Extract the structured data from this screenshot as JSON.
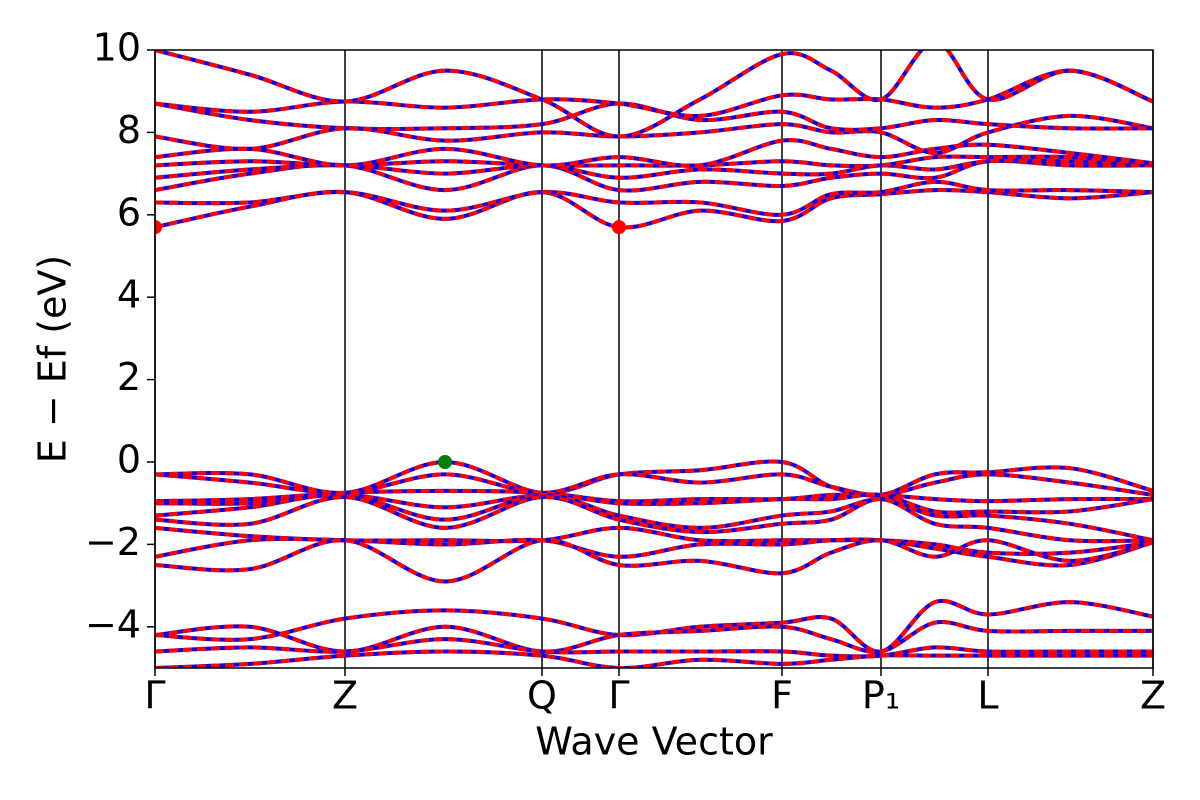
{
  "chart_data": {
    "type": "band_structure",
    "x_label": "Wave Vector",
    "y_label": "E − Ef (eV)",
    "xlim": [
      0,
      9.98
    ],
    "ylim": [
      -5,
      10
    ],
    "xticks": [
      {
        "value": 0,
        "label": "Γ"
      },
      {
        "value": 1.9,
        "label": "Z"
      },
      {
        "value": 3.87,
        "label": "Q"
      },
      {
        "value": 4.64,
        "label": "Γ"
      },
      {
        "value": 6.27,
        "label": "F"
      },
      {
        "value": 7.26,
        "label": "P₁"
      },
      {
        "value": 8.33,
        "label": "L"
      },
      {
        "value": 9.98,
        "label": "Z"
      }
    ],
    "yticks": [
      {
        "value": -4,
        "label": "−4"
      },
      {
        "value": -2,
        "label": "−2"
      },
      0,
      2,
      4,
      6,
      8,
      10
    ],
    "vertical_lines": true,
    "color": "#ff0000",
    "under_color": "#0000ff",
    "x": [
      0,
      0.95,
      1.9,
      2.9,
      3.87,
      4.64,
      5.45,
      6.27,
      6.76,
      7.26,
      7.8,
      8.33,
      9.15,
      9.98
    ],
    "series": [
      {
        "values": [
          5.7,
          6.2,
          6.55,
          5.9,
          6.55,
          5.7,
          6.1,
          5.85,
          6.4,
          6.5,
          6.6,
          6.55,
          6.4,
          6.55
        ]
      },
      {
        "values": [
          6.3,
          6.3,
          6.55,
          6.1,
          6.55,
          6.3,
          6.3,
          6.0,
          6.5,
          6.55,
          6.8,
          6.6,
          6.6,
          6.55
        ]
      },
      {
        "values": [
          6.6,
          7.0,
          7.2,
          6.6,
          7.2,
          6.6,
          6.8,
          6.7,
          6.9,
          7.0,
          6.9,
          7.3,
          7.2,
          7.2
        ]
      },
      {
        "values": [
          6.9,
          7.1,
          7.2,
          7.0,
          7.2,
          6.9,
          7.1,
          7.0,
          7.0,
          7.2,
          7.1,
          7.3,
          7.3,
          7.25
        ]
      },
      {
        "values": [
          7.2,
          7.3,
          7.2,
          7.3,
          7.2,
          7.2,
          7.2,
          7.3,
          7.2,
          7.2,
          7.4,
          7.4,
          7.4,
          7.25
        ]
      },
      {
        "values": [
          7.4,
          7.6,
          7.2,
          7.6,
          7.2,
          7.4,
          7.2,
          7.8,
          7.6,
          7.4,
          7.6,
          7.7,
          7.5,
          7.25
        ]
      },
      {
        "values": [
          7.9,
          7.6,
          8.1,
          7.8,
          8.0,
          7.9,
          8.0,
          8.2,
          8.0,
          8.0,
          7.5,
          8.0,
          8.4,
          8.1
        ]
      },
      {
        "values": [
          8.7,
          8.3,
          8.1,
          8.1,
          8.2,
          8.7,
          8.3,
          8.5,
          8.1,
          8.1,
          8.3,
          8.2,
          8.1,
          8.1
        ]
      },
      {
        "values": [
          8.7,
          8.5,
          8.75,
          8.6,
          8.8,
          8.7,
          8.4,
          8.9,
          8.8,
          8.8,
          8.6,
          8.8,
          9.5,
          8.75
        ]
      },
      {
        "values": [
          10,
          9.4,
          8.75,
          9.5,
          8.8,
          7.9,
          8.8,
          9.9,
          9.5,
          8.8,
          10.2,
          8.8,
          9.5,
          8.75
        ]
      },
      {
        "values": [
          -0.3,
          -0.3,
          -0.75,
          0.0,
          -0.75,
          -0.3,
          -0.2,
          0.0,
          -0.6,
          -0.8,
          -0.3,
          -0.25,
          -0.15,
          -0.7
        ]
      },
      {
        "values": [
          -0.3,
          -0.5,
          -0.75,
          -0.3,
          -0.75,
          -0.3,
          -0.5,
          -0.3,
          -0.6,
          -0.8,
          -0.5,
          -0.3,
          -0.5,
          -0.8
        ]
      },
      {
        "values": [
          -0.95,
          -0.9,
          -0.75,
          -0.7,
          -0.75,
          -0.95,
          -0.9,
          -0.9,
          -0.8,
          -0.8,
          -0.9,
          -0.95,
          -0.9,
          -0.9
        ]
      },
      {
        "values": [
          -1.0,
          -1.0,
          -0.8,
          -1.1,
          -0.8,
          -1.0,
          -1.0,
          -0.9,
          -0.9,
          -0.8,
          -1.2,
          -1.2,
          -1.2,
          -0.9
        ]
      },
      {
        "values": [
          -1.3,
          -1.1,
          -0.8,
          -1.4,
          -0.8,
          -1.3,
          -1.6,
          -1.3,
          -1.2,
          -0.9,
          -1.3,
          -1.3,
          -1.5,
          -1.9
        ]
      },
      {
        "values": [
          -1.4,
          -1.5,
          -0.85,
          -1.6,
          -0.85,
          -1.4,
          -1.7,
          -1.5,
          -1.4,
          -0.9,
          -1.5,
          -1.6,
          -1.9,
          -1.9
        ]
      },
      {
        "values": [
          -1.6,
          -1.8,
          -1.9,
          -1.9,
          -1.9,
          -1.6,
          -1.9,
          -1.9,
          -1.9,
          -1.9,
          -2.0,
          -2.2,
          -2.2,
          -1.95
        ]
      },
      {
        "values": [
          -2.3,
          -1.9,
          -1.9,
          -2.0,
          -1.9,
          -2.3,
          -2.0,
          -2.0,
          -1.9,
          -1.9,
          -2.1,
          -2.3,
          -2.5,
          -1.95
        ]
      },
      {
        "values": [
          -2.5,
          -2.6,
          -1.9,
          -2.9,
          -1.9,
          -2.5,
          -2.4,
          -2.7,
          -2.2,
          -1.9,
          -2.3,
          -1.9,
          -2.4,
          -1.95
        ]
      },
      {
        "values": [
          -4.2,
          -4.3,
          -3.8,
          -3.6,
          -3.8,
          -4.2,
          -4.0,
          -3.9,
          -3.8,
          -4.6,
          -3.4,
          -3.7,
          -3.4,
          -3.75
        ]
      },
      {
        "values": [
          -4.2,
          -4.0,
          -4.6,
          -4.0,
          -4.6,
          -4.2,
          -4.1,
          -4.0,
          -4.3,
          -4.6,
          -3.9,
          -4.1,
          -4.1,
          -4.1
        ]
      },
      {
        "values": [
          -4.6,
          -4.5,
          -4.6,
          -4.3,
          -4.6,
          -4.6,
          -4.6,
          -4.6,
          -4.7,
          -4.7,
          -4.5,
          -4.6,
          -4.6,
          -4.6
        ]
      },
      {
        "values": [
          -5.0,
          -4.9,
          -4.7,
          -4.6,
          -4.7,
          -5.0,
          -4.8,
          -4.9,
          -4.8,
          -4.7,
          -4.7,
          -4.7,
          -4.7,
          -4.7
        ]
      }
    ],
    "markers": [
      {
        "x": 0,
        "y": 5.7,
        "color": "#ff0000"
      },
      {
        "x": 4.64,
        "y": 5.7,
        "color": "#ff0000"
      },
      {
        "x": 2.9,
        "y": 0,
        "color": "#008000"
      }
    ]
  }
}
